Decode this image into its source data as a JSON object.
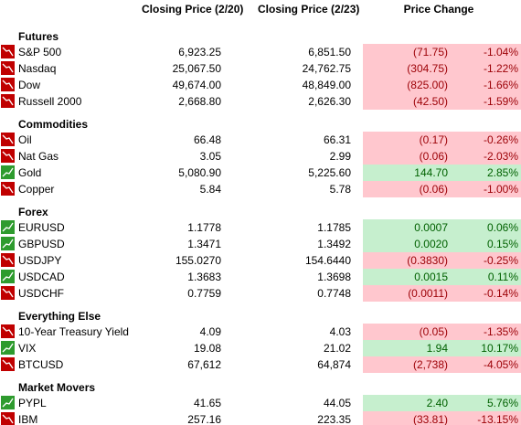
{
  "table": {
    "header": [
      "Closing Price (2/20)",
      "Closing Price (2/23)",
      "Price Change"
    ],
    "sections": [
      {
        "title": "Futures",
        "rows": [
          {
            "trend": "down",
            "cells": [
              "S&P 500",
              "6,923.25",
              "6,851.50",
              "(71.75)",
              "-1.04%"
            ]
          },
          {
            "trend": "down",
            "cells": [
              "Nasdaq",
              "25,067.50",
              "24,762.75",
              "(304.75)",
              "-1.22%"
            ]
          },
          {
            "trend": "down",
            "cells": [
              "Dow",
              "49,674.00",
              "48,849.00",
              "(825.00)",
              "-1.66%"
            ]
          },
          {
            "trend": "down",
            "cells": [
              "Russell 2000",
              "2,668.80",
              "2,626.30",
              "(42.50)",
              "-1.59%"
            ]
          }
        ]
      },
      {
        "title": "Commodities",
        "rows": [
          {
            "trend": "down",
            "cells": [
              "Oil",
              "66.48",
              "66.31",
              "(0.17)",
              "-0.26%"
            ]
          },
          {
            "trend": "down",
            "cells": [
              "Nat Gas",
              "3.05",
              "2.99",
              "(0.06)",
              "-2.03%"
            ]
          },
          {
            "trend": "up",
            "cells": [
              "Gold",
              "5,080.90",
              "5,225.60",
              "144.70",
              "2.85%"
            ]
          },
          {
            "trend": "down",
            "cells": [
              "Copper",
              "5.84",
              "5.78",
              "(0.06)",
              "-1.00%"
            ]
          }
        ]
      },
      {
        "title": "Forex",
        "rows": [
          {
            "trend": "up",
            "cells": [
              "EURUSD",
              "1.1778",
              "1.1785",
              "0.0007",
              "0.06%"
            ]
          },
          {
            "trend": "up",
            "cells": [
              "GBPUSD",
              "1.3471",
              "1.3492",
              "0.0020",
              "0.15%"
            ]
          },
          {
            "trend": "down",
            "cells": [
              "USDJPY",
              "155.0270",
              "154.6440",
              "(0.3830)",
              "-0.25%"
            ]
          },
          {
            "trend": "up",
            "cells": [
              "USDCAD",
              "1.3683",
              "1.3698",
              "0.0015",
              "0.11%"
            ]
          },
          {
            "trend": "down",
            "cells": [
              "USDCHF",
              "0.7759",
              "0.7748",
              "(0.0011)",
              "-0.14%"
            ]
          }
        ]
      },
      {
        "title": "Everything Else",
        "rows": [
          {
            "trend": "down",
            "cells": [
              "10-Year Treasury Yield",
              "4.09",
              "4.03",
              "(0.05)",
              "-1.35%"
            ]
          },
          {
            "trend": "up",
            "cells": [
              "VIX",
              "19.08",
              "21.02",
              "1.94",
              "10.17%"
            ]
          },
          {
            "trend": "down",
            "cells": [
              "BTCUSD",
              "67,612",
              "64,874",
              "(2,738)",
              "-4.05%"
            ]
          }
        ]
      },
      {
        "title": "Market Movers",
        "rows": [
          {
            "trend": "up",
            "cells": [
              "PYPL",
              "41.65",
              "44.05",
              "2.40",
              "5.76%"
            ]
          },
          {
            "trend": "down",
            "cells": [
              "IBM",
              "257.16",
              "223.35",
              "(33.81)",
              "-13.15%"
            ]
          }
        ]
      }
    ]
  }
}
